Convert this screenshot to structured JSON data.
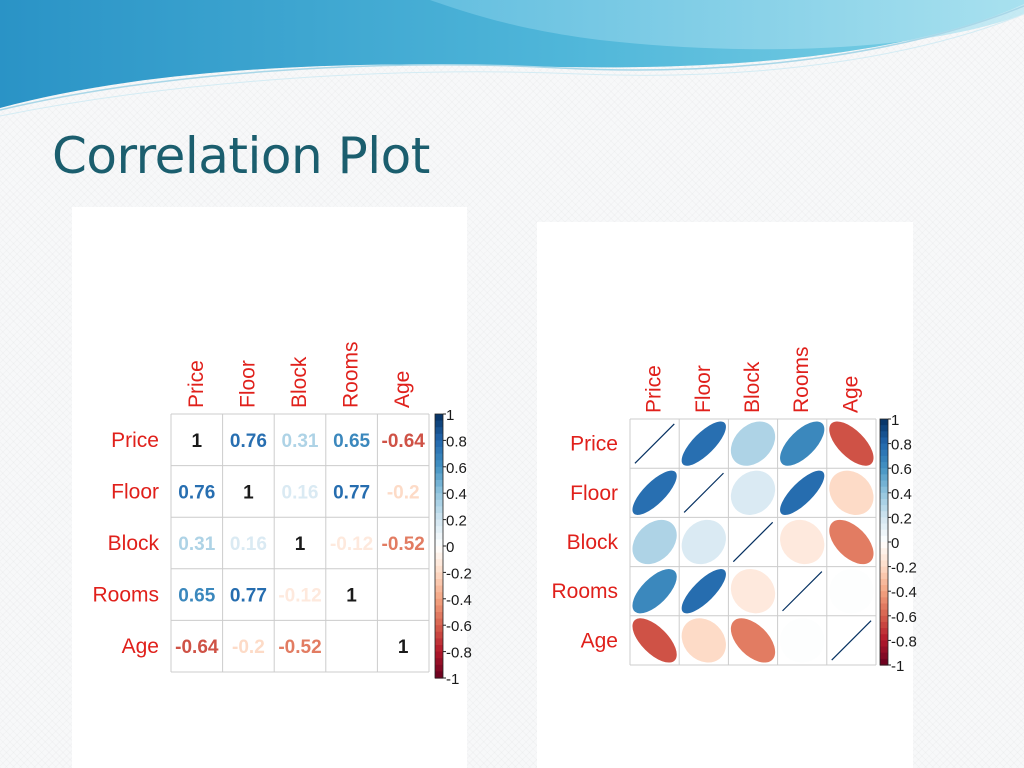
{
  "slide": {
    "title": "Correlation Plot"
  },
  "colors": {
    "title": "#1b5e6e",
    "label": "#e0201b",
    "grid": "#cccccc",
    "neg_strong": "#67001f",
    "neutral": "#ffffff",
    "pos_strong": "#053061"
  },
  "chart_data": [
    {
      "type": "heatmap",
      "method": "number",
      "title": "",
      "variables": [
        "Price",
        "Floor",
        "Block",
        "Rooms",
        "Age"
      ],
      "matrix": [
        [
          1,
          0.76,
          0.31,
          0.65,
          -0.64
        ],
        [
          0.76,
          1,
          0.16,
          0.77,
          -0.2
        ],
        [
          0.31,
          0.16,
          1,
          -0.12,
          -0.52
        ],
        [
          0.65,
          0.77,
          -0.12,
          1,
          null
        ],
        [
          -0.64,
          -0.2,
          -0.52,
          null,
          1
        ]
      ],
      "legend": {
        "placement": "right",
        "min": -1,
        "max": 1,
        "ticks": [
          "1",
          "0.8",
          "0.6",
          "0.4",
          "0.2",
          "0",
          "-0.2",
          "-0.4",
          "-0.6",
          "-0.8",
          "-1"
        ]
      }
    },
    {
      "type": "heatmap",
      "method": "ellipse",
      "title": "",
      "variables": [
        "Price",
        "Floor",
        "Block",
        "Rooms",
        "Age"
      ],
      "matrix": [
        [
          1,
          0.76,
          0.31,
          0.65,
          -0.64
        ],
        [
          0.76,
          1,
          0.16,
          0.77,
          -0.2
        ],
        [
          0.31,
          0.16,
          1,
          -0.12,
          -0.52
        ],
        [
          0.65,
          0.77,
          -0.12,
          1,
          0.01
        ],
        [
          -0.64,
          -0.2,
          -0.52,
          0.01,
          1
        ]
      ],
      "legend": {
        "placement": "right",
        "min": -1,
        "max": 1,
        "ticks": [
          "1",
          "0.8",
          "0.6",
          "0.4",
          "0.2",
          "0",
          "-0.2",
          "-0.4",
          "-0.6",
          "-0.8",
          "-1"
        ]
      }
    }
  ]
}
